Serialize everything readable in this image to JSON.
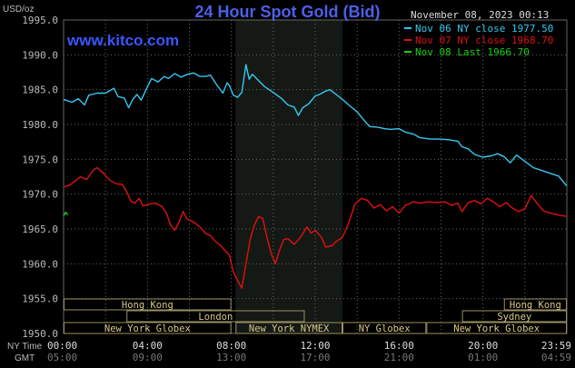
{
  "header": {
    "unit": "USD/oz",
    "title": "24 Hour Spot Gold (Bid)",
    "datetime": "November 08, 2023 00:13",
    "watermark": "www.kitco.com"
  },
  "legend": [
    {
      "label": "Nov 06 NY close 1977.50",
      "color": "#35c8f0"
    },
    {
      "label": "Nov 07 NY close 1968.70",
      "color": "#e01010"
    },
    {
      "label": "Nov 08 Last 1966.70",
      "color": "#18d018"
    }
  ],
  "colors": {
    "background": "#000000",
    "night_band": "#151915",
    "grid": "#666666",
    "axis_text": "#bbbbbb",
    "market_box_border": "#9a9060",
    "market_text": "#d8c88a",
    "watermark": "#3a56ff",
    "title": "#4d5fe8"
  },
  "markets": [
    {
      "label": "Hong Kong",
      "row": 0,
      "start": 0,
      "end": 8
    },
    {
      "label": "Hong Kong",
      "row": 0,
      "start": 21,
      "end": 24
    },
    {
      "label": "London",
      "row": 1,
      "start": 3,
      "end": 11.5
    },
    {
      "label": "Sydney",
      "row": 1,
      "start": 19,
      "end": 24
    },
    {
      "label": "New York Globex",
      "row": 2,
      "start": 0,
      "end": 8
    },
    {
      "label": "New York NYMEX",
      "row": 2,
      "start": 8.2,
      "end": 13.3
    },
    {
      "label": "NY Globex",
      "row": 2,
      "start": 13.3,
      "end": 17.3
    },
    {
      "label": "New York Globex",
      "row": 2,
      "start": 17.3,
      "end": 24
    }
  ],
  "x_axis": {
    "row1_label": "NY Time",
    "row2_label": "GMT",
    "ny_ticks": [
      "00:00",
      "04:00",
      "08:00",
      "12:00",
      "16:00",
      "20:00",
      "23:59"
    ],
    "gmt_ticks": [
      "05:00",
      "09:00",
      "13:00",
      "17:00",
      "21:00",
      "01:00",
      "04:59"
    ]
  },
  "chart_data": {
    "type": "line",
    "title": "24 Hour Spot Gold (Bid)",
    "ylabel": "USD/oz",
    "xlabel": "NY Time",
    "x_unit": "hours",
    "xlim": [
      0,
      24
    ],
    "ylim": [
      1950,
      1995
    ],
    "yticks": [
      "1950.0",
      "1955.0",
      "1960.0",
      "1965.0",
      "1970.0",
      "1975.0",
      "1980.0",
      "1985.0",
      "1990.0",
      "1995.0"
    ],
    "grid": true,
    "night_band_hours": [
      8.2,
      13.3
    ],
    "series": [
      {
        "name": "Nov 06 NY close 1977.50",
        "color": "#35c8f0",
        "points": [
          [
            0,
            1983.6
          ],
          [
            0.4,
            1983.2
          ],
          [
            0.7,
            1983.7
          ],
          [
            1.0,
            1982.8
          ],
          [
            1.2,
            1984.2
          ],
          [
            1.6,
            1984.5
          ],
          [
            2.0,
            1984.5
          ],
          [
            2.4,
            1985.2
          ],
          [
            2.6,
            1984.0
          ],
          [
            2.9,
            1983.8
          ],
          [
            3.1,
            1982.4
          ],
          [
            3.3,
            1983.6
          ],
          [
            3.5,
            1984.3
          ],
          [
            3.7,
            1983.5
          ],
          [
            4.0,
            1985.4
          ],
          [
            4.2,
            1986.6
          ],
          [
            4.5,
            1986.1
          ],
          [
            4.8,
            1986.9
          ],
          [
            5.0,
            1986.6
          ],
          [
            5.3,
            1987.3
          ],
          [
            5.6,
            1986.8
          ],
          [
            5.9,
            1987.2
          ],
          [
            6.2,
            1987.4
          ],
          [
            6.5,
            1986.9
          ],
          [
            6.8,
            1986.9
          ],
          [
            7.0,
            1987.1
          ],
          [
            7.3,
            1985.7
          ],
          [
            7.6,
            1984.5
          ],
          [
            7.8,
            1986.0
          ],
          [
            7.9,
            1985.6
          ],
          [
            8.1,
            1984.2
          ],
          [
            8.3,
            1983.9
          ],
          [
            8.5,
            1984.6
          ],
          [
            8.7,
            1988.6
          ],
          [
            8.85,
            1986.5
          ],
          [
            9.0,
            1987.2
          ],
          [
            9.3,
            1986.3
          ],
          [
            9.6,
            1985.4
          ],
          [
            10.0,
            1984.6
          ],
          [
            10.4,
            1983.7
          ],
          [
            10.7,
            1982.8
          ],
          [
            11.0,
            1982.5
          ],
          [
            11.2,
            1981.3
          ],
          [
            11.4,
            1982.4
          ],
          [
            11.7,
            1983.0
          ],
          [
            12.0,
            1984.1
          ],
          [
            12.2,
            1984.3
          ],
          [
            12.5,
            1984.8
          ],
          [
            12.7,
            1985.0
          ],
          [
            13.0,
            1984.3
          ],
          [
            13.3,
            1983.6
          ],
          [
            13.6,
            1982.8
          ],
          [
            14.0,
            1981.8
          ],
          [
            14.3,
            1980.7
          ],
          [
            14.6,
            1979.7
          ],
          [
            15.0,
            1979.6
          ],
          [
            15.3,
            1979.4
          ],
          [
            15.6,
            1979.3
          ],
          [
            16.0,
            1979.4
          ],
          [
            16.3,
            1978.9
          ],
          [
            16.7,
            1978.6
          ],
          [
            17.0,
            1978.1
          ],
          [
            17.5,
            1977.9
          ],
          [
            18.0,
            1977.9
          ],
          [
            18.4,
            1977.8
          ],
          [
            18.8,
            1977.6
          ],
          [
            19.0,
            1976.8
          ],
          [
            19.3,
            1976.5
          ],
          [
            19.6,
            1975.7
          ],
          [
            20.0,
            1975.3
          ],
          [
            20.4,
            1975.5
          ],
          [
            20.7,
            1975.8
          ],
          [
            21.0,
            1975.4
          ],
          [
            21.3,
            1974.5
          ],
          [
            21.6,
            1975.6
          ],
          [
            22.0,
            1974.7
          ],
          [
            22.4,
            1973.8
          ],
          [
            22.8,
            1973.4
          ],
          [
            23.2,
            1973.0
          ],
          [
            23.6,
            1972.6
          ],
          [
            23.99,
            1971.2
          ]
        ]
      },
      {
        "name": "Nov 07 NY close 1968.70",
        "color": "#e01010",
        "points": [
          [
            0,
            1971.0
          ],
          [
            0.3,
            1971.3
          ],
          [
            0.6,
            1972.0
          ],
          [
            0.8,
            1972.5
          ],
          [
            1.1,
            1972.1
          ],
          [
            1.4,
            1973.4
          ],
          [
            1.6,
            1973.8
          ],
          [
            1.9,
            1973.0
          ],
          [
            2.2,
            1972.0
          ],
          [
            2.5,
            1971.5
          ],
          [
            2.8,
            1971.4
          ],
          [
            3.0,
            1970.4
          ],
          [
            3.2,
            1969.0
          ],
          [
            3.4,
            1968.7
          ],
          [
            3.6,
            1969.4
          ],
          [
            3.8,
            1968.3
          ],
          [
            4.1,
            1968.6
          ],
          [
            4.4,
            1968.7
          ],
          [
            4.7,
            1968.2
          ],
          [
            4.9,
            1967.3
          ],
          [
            5.1,
            1965.6
          ],
          [
            5.3,
            1964.8
          ],
          [
            5.5,
            1966.0
          ],
          [
            5.7,
            1967.5
          ],
          [
            5.9,
            1966.4
          ],
          [
            6.2,
            1966.0
          ],
          [
            6.5,
            1965.3
          ],
          [
            6.8,
            1964.3
          ],
          [
            7.0,
            1964.1
          ],
          [
            7.2,
            1963.3
          ],
          [
            7.5,
            1962.6
          ],
          [
            7.7,
            1961.9
          ],
          [
            7.9,
            1961.3
          ],
          [
            8.1,
            1958.8
          ],
          [
            8.3,
            1957.6
          ],
          [
            8.5,
            1956.5
          ],
          [
            8.7,
            1960.0
          ],
          [
            8.9,
            1963.5
          ],
          [
            9.1,
            1965.6
          ],
          [
            9.3,
            1966.8
          ],
          [
            9.5,
            1966.5
          ],
          [
            9.7,
            1963.8
          ],
          [
            9.9,
            1961.5
          ],
          [
            10.1,
            1960.0
          ],
          [
            10.3,
            1962.0
          ],
          [
            10.5,
            1963.5
          ],
          [
            10.7,
            1963.6
          ],
          [
            11.0,
            1962.8
          ],
          [
            11.3,
            1963.8
          ],
          [
            11.6,
            1965.3
          ],
          [
            11.8,
            1964.4
          ],
          [
            12.0,
            1964.8
          ],
          [
            12.3,
            1963.8
          ],
          [
            12.5,
            1962.4
          ],
          [
            12.8,
            1962.6
          ],
          [
            13.0,
            1963.2
          ],
          [
            13.3,
            1963.8
          ],
          [
            13.6,
            1965.9
          ],
          [
            13.9,
            1968.6
          ],
          [
            14.2,
            1969.4
          ],
          [
            14.5,
            1969.1
          ],
          [
            14.8,
            1968.0
          ],
          [
            15.1,
            1968.5
          ],
          [
            15.4,
            1967.6
          ],
          [
            15.7,
            1968.2
          ],
          [
            16.0,
            1967.3
          ],
          [
            16.3,
            1968.4
          ],
          [
            16.7,
            1968.9
          ],
          [
            17.0,
            1968.7
          ],
          [
            17.4,
            1968.9
          ],
          [
            17.8,
            1968.8
          ],
          [
            18.2,
            1968.9
          ],
          [
            18.5,
            1968.4
          ],
          [
            18.8,
            1968.7
          ],
          [
            19.0,
            1967.5
          ],
          [
            19.3,
            1968.8
          ],
          [
            19.6,
            1969.1
          ],
          [
            19.9,
            1968.6
          ],
          [
            20.2,
            1969.4
          ],
          [
            20.5,
            1968.9
          ],
          [
            20.8,
            1968.2
          ],
          [
            21.1,
            1968.8
          ],
          [
            21.4,
            1968.0
          ],
          [
            21.7,
            1967.5
          ],
          [
            22.0,
            1967.9
          ],
          [
            22.3,
            1969.8
          ],
          [
            22.6,
            1968.6
          ],
          [
            22.9,
            1967.6
          ],
          [
            23.2,
            1967.3
          ],
          [
            23.6,
            1967.0
          ],
          [
            23.99,
            1966.8
          ]
        ]
      },
      {
        "name": "Nov 08 Last 1966.70",
        "color": "#18d018",
        "points": [
          [
            0,
            1966.9
          ],
          [
            0.1,
            1967.4
          ],
          [
            0.2,
            1967.0
          ]
        ]
      }
    ]
  }
}
